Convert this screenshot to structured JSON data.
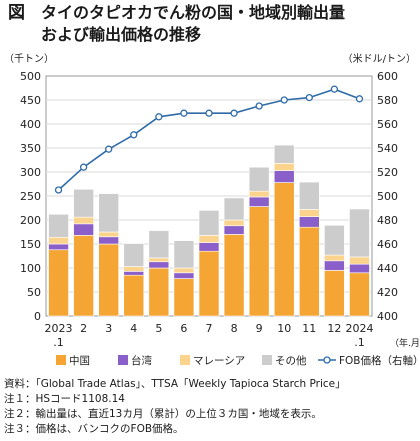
{
  "figure": {
    "label": "図",
    "title_line1": "タイのタピオカでん粉の国・地域別輸出量",
    "title_line2": "および輸出価格の推移"
  },
  "chart_data": {
    "type": "bar",
    "stacked": true,
    "categories": [
      "2023.1",
      "2",
      "3",
      "4",
      "5",
      "6",
      "7",
      "8",
      "9",
      "10",
      "11",
      "12",
      "2024.1"
    ],
    "tick_labels": [
      "2023",
      "2",
      "3",
      "4",
      "5",
      "6",
      "7",
      "8",
      "9",
      "10",
      "11",
      "12",
      "2024"
    ],
    "tick_sublabels": [
      ".1",
      "",
      "",
      "",
      "",
      "",
      "",
      "",
      "",
      "",
      "",
      "",
      ".1"
    ],
    "series": [
      {
        "name": "中国",
        "values": [
          138,
          168,
          150,
          85,
          100,
          78,
          135,
          170,
          228,
          278,
          185,
          95,
          90
        ],
        "color": "#f4a533"
      },
      {
        "name": "台湾",
        "values": [
          12,
          24,
          15,
          8,
          13,
          12,
          18,
          18,
          20,
          25,
          22,
          20,
          18
        ],
        "color": "#8a5fc9"
      },
      {
        "name": "マレーシア",
        "values": [
          14,
          14,
          10,
          10,
          8,
          10,
          15,
          12,
          12,
          15,
          15,
          12,
          15
        ],
        "color": "#fbd38c"
      },
      {
        "name": "その他",
        "values": [
          48,
          58,
          80,
          48,
          57,
          57,
          52,
          46,
          50,
          38,
          57,
          62,
          100
        ],
        "color": "#cccccc"
      }
    ],
    "line_series": {
      "name": "FOB価格（右軸）",
      "values": [
        505,
        524,
        539,
        551,
        566,
        569,
        569,
        569,
        575,
        580,
        582,
        589,
        581
      ],
      "color": "#2e6ba8"
    },
    "yleft": {
      "label": "（千トン）",
      "lim": [
        0,
        500
      ],
      "ticks": [
        0,
        50,
        100,
        150,
        200,
        250,
        300,
        350,
        400,
        450,
        500
      ]
    },
    "yright": {
      "label": "（米ドル/トン）",
      "lim": [
        400,
        600
      ],
      "ticks": [
        400,
        420,
        440,
        460,
        480,
        500,
        520,
        540,
        560,
        580,
        600
      ]
    },
    "xunit": "（年.月）",
    "grid": true,
    "legend_position": "bottom"
  },
  "notes": [
    "資料：「Global Trade Atlas」、TTSA「Weekly Tapioca Starch Price」",
    "注１：HSコード1108.14",
    "注２：輸出量は、直近13カ月（累計）の上位３カ国・地域を表示。",
    "注３：価格は、バンコクのFOB価格。"
  ]
}
